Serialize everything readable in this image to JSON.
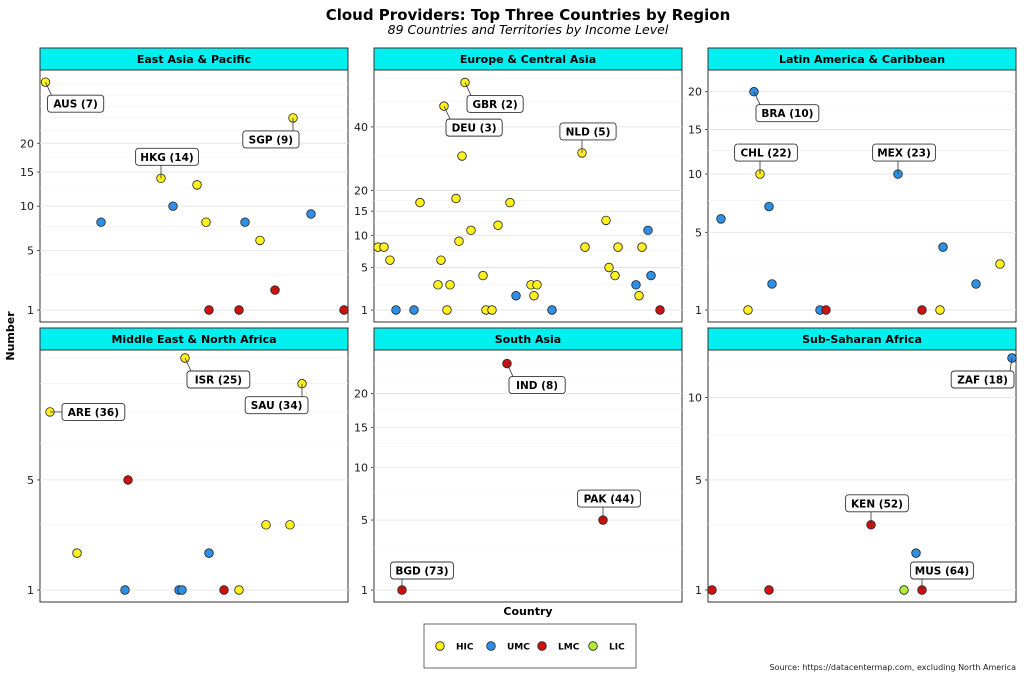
{
  "chart_data": {
    "type": "scatter",
    "title": "Cloud Providers: Top Three Countries by Region",
    "subtitle": "89 Countries and Territories by Income Level",
    "xlabel": "Country",
    "ylabel": "Number",
    "caption": "Source: https://datacentermap.com, excluding North America",
    "y_scale": "sqrt",
    "grid": true,
    "legend_position": "bottom",
    "categories": {
      "HIC": {
        "label": "HIC",
        "color": "#FFF01F"
      },
      "UMC": {
        "label": "UMC",
        "color": "#2E8FE6"
      },
      "LMC": {
        "label": "LMC",
        "color": "#CC1111"
      },
      "LIC": {
        "label": "LIC",
        "color": "#B3EB3B"
      }
    },
    "legend": [
      "HIC",
      "UMC",
      "LMC",
      "LIC"
    ],
    "panels": [
      {
        "name": "East Asia & Pacific",
        "ymax": 34,
        "yticks": [
          1,
          5,
          10,
          15,
          20
        ],
        "points": [
          {
            "x": 0.5,
            "y": 33,
            "cat": "HIC",
            "label": "AUS (7)"
          },
          {
            "x": 19,
            "y": 8,
            "cat": "UMC"
          },
          {
            "x": 39,
            "y": 14,
            "cat": "HIC",
            "label": "HKG (14)"
          },
          {
            "x": 43,
            "y": 10,
            "cat": "UMC"
          },
          {
            "x": 51,
            "y": 13,
            "cat": "HIC"
          },
          {
            "x": 54,
            "y": 8,
            "cat": "HIC"
          },
          {
            "x": 55,
            "y": 1,
            "cat": "LMC"
          },
          {
            "x": 65,
            "y": 1,
            "cat": "LMC"
          },
          {
            "x": 67,
            "y": 8,
            "cat": "UMC"
          },
          {
            "x": 72,
            "y": 6,
            "cat": "HIC"
          },
          {
            "x": 77,
            "y": 2,
            "cat": "LMC"
          },
          {
            "x": 83,
            "y": 25,
            "cat": "HIC",
            "label": "SGP (9)"
          },
          {
            "x": 89,
            "y": 9,
            "cat": "UMC"
          },
          {
            "x": 100,
            "y": 1,
            "cat": "LMC"
          }
        ]
      },
      {
        "name": "Europe & Central Asia",
        "ymax": 60,
        "yticks": [
          1,
          5,
          10,
          15,
          20,
          40
        ],
        "points": [
          {
            "x": 0,
            "y": 8,
            "cat": "HIC"
          },
          {
            "x": 2,
            "y": 8,
            "cat": "HIC"
          },
          {
            "x": 4,
            "y": 6,
            "cat": "HIC"
          },
          {
            "x": 6,
            "y": 1,
            "cat": "UMC"
          },
          {
            "x": 12,
            "y": 1,
            "cat": "UMC"
          },
          {
            "x": 14,
            "y": 17,
            "cat": "HIC"
          },
          {
            "x": 20,
            "y": 3,
            "cat": "HIC"
          },
          {
            "x": 21,
            "y": 6,
            "cat": "HIC"
          },
          {
            "x": 22,
            "y": 48,
            "cat": "HIC",
            "label": "DEU (3)"
          },
          {
            "x": 23,
            "y": 1,
            "cat": "HIC"
          },
          {
            "x": 24,
            "y": 3,
            "cat": "HIC"
          },
          {
            "x": 26,
            "y": 18,
            "cat": "HIC"
          },
          {
            "x": 27,
            "y": 9,
            "cat": "HIC"
          },
          {
            "x": 28,
            "y": 30,
            "cat": "HIC"
          },
          {
            "x": 29,
            "y": 58,
            "cat": "HIC",
            "label": "GBR (2)"
          },
          {
            "x": 31,
            "y": 11,
            "cat": "HIC"
          },
          {
            "x": 35,
            "y": 4,
            "cat": "HIC"
          },
          {
            "x": 36,
            "y": 1,
            "cat": "HIC"
          },
          {
            "x": 38,
            "y": 1,
            "cat": "HIC"
          },
          {
            "x": 40,
            "y": 12,
            "cat": "HIC"
          },
          {
            "x": 44,
            "y": 17,
            "cat": "HIC"
          },
          {
            "x": 46,
            "y": 2,
            "cat": "UMC"
          },
          {
            "x": 51,
            "y": 3,
            "cat": "HIC"
          },
          {
            "x": 52,
            "y": 2,
            "cat": "HIC"
          },
          {
            "x": 53,
            "y": 3,
            "cat": "HIC"
          },
          {
            "x": 58,
            "y": 1,
            "cat": "UMC"
          },
          {
            "x": 68,
            "y": 31,
            "cat": "HIC",
            "label": "NLD (5)"
          },
          {
            "x": 69,
            "y": 8,
            "cat": "HIC"
          },
          {
            "x": 76,
            "y": 13,
            "cat": "HIC"
          },
          {
            "x": 77,
            "y": 5,
            "cat": "HIC"
          },
          {
            "x": 79,
            "y": 4,
            "cat": "HIC"
          },
          {
            "x": 80,
            "y": 8,
            "cat": "HIC"
          },
          {
            "x": 86,
            "y": 3,
            "cat": "UMC"
          },
          {
            "x": 87,
            "y": 2,
            "cat": "HIC"
          },
          {
            "x": 88,
            "y": 8,
            "cat": "HIC"
          },
          {
            "x": 90,
            "y": 11,
            "cat": "UMC"
          },
          {
            "x": 91,
            "y": 4,
            "cat": "UMC"
          },
          {
            "x": 94,
            "y": 1,
            "cat": "LMC"
          }
        ]
      },
      {
        "name": "Latin America & Caribbean",
        "ymax": 22,
        "yticks": [
          1,
          5,
          10,
          15,
          20
        ],
        "points": [
          {
            "x": 3,
            "y": 6,
            "cat": "UMC"
          },
          {
            "x": 12,
            "y": 1,
            "cat": "HIC"
          },
          {
            "x": 16,
            "y": 10,
            "cat": "HIC",
            "label": "CHL (22)"
          },
          {
            "x": 14,
            "y": 20,
            "cat": "UMC",
            "label": "BRA (10)"
          },
          {
            "x": 19,
            "y": 7,
            "cat": "UMC"
          },
          {
            "x": 20,
            "y": 2,
            "cat": "UMC"
          },
          {
            "x": 36,
            "y": 1,
            "cat": "UMC"
          },
          {
            "x": 38,
            "y": 1,
            "cat": "LMC"
          },
          {
            "x": 62,
            "y": 10,
            "cat": "UMC",
            "label": "MEX (23)"
          },
          {
            "x": 70,
            "y": 1,
            "cat": "LMC"
          },
          {
            "x": 76,
            "y": 1,
            "cat": "HIC"
          },
          {
            "x": 77,
            "y": 4,
            "cat": "UMC"
          },
          {
            "x": 88,
            "y": 2,
            "cat": "UMC"
          },
          {
            "x": 96,
            "y": 3,
            "cat": "HIC"
          }
        ]
      },
      {
        "name": "Middle East & North Africa",
        "ymax": 13,
        "yticks": [
          1,
          5
        ],
        "points": [
          {
            "x": 2,
            "y": 9,
            "cat": "HIC",
            "label": "ARE (36)"
          },
          {
            "x": 11,
            "y": 2,
            "cat": "HIC"
          },
          {
            "x": 27,
            "y": 1,
            "cat": "UMC"
          },
          {
            "x": 28,
            "y": 5,
            "cat": "LMC"
          },
          {
            "x": 45,
            "y": 1,
            "cat": "UMC"
          },
          {
            "x": 46,
            "y": 1,
            "cat": "UMC"
          },
          {
            "x": 47,
            "y": 13,
            "cat": "HIC",
            "label": "ISR (25)"
          },
          {
            "x": 55,
            "y": 2,
            "cat": "UMC"
          },
          {
            "x": 60,
            "y": 1,
            "cat": "LMC"
          },
          {
            "x": 65,
            "y": 1,
            "cat": "HIC"
          },
          {
            "x": 74,
            "y": 3,
            "cat": "HIC"
          },
          {
            "x": 82,
            "y": 3,
            "cat": "HIC"
          },
          {
            "x": 86,
            "y": 11,
            "cat": "HIC",
            "label": "SAU (34)"
          }
        ]
      },
      {
        "name": "South Asia",
        "ymax": 26,
        "yticks": [
          1,
          5,
          10,
          15,
          20
        ],
        "points": [
          {
            "x": 8,
            "y": 1,
            "cat": "LMC",
            "label": "BGD (73)"
          },
          {
            "x": 43,
            "y": 25,
            "cat": "LMC",
            "label": "IND (8)"
          },
          {
            "x": 75,
            "y": 5,
            "cat": "LMC",
            "label": "PAK (44)"
          }
        ]
      },
      {
        "name": "Sub-Saharan Africa",
        "ymax": 13,
        "yticks": [
          1,
          5,
          10
        ],
        "points": [
          {
            "x": 0,
            "y": 1,
            "cat": "LMC"
          },
          {
            "x": 19,
            "y": 1,
            "cat": "LMC"
          },
          {
            "x": 53,
            "y": 3,
            "cat": "LMC",
            "label": "KEN (52)"
          },
          {
            "x": 64,
            "y": 1,
            "cat": "LIC"
          },
          {
            "x": 68,
            "y": 2,
            "cat": "UMC"
          },
          {
            "x": 70,
            "y": 1,
            "cat": "LMC",
            "label": "MUS (64)"
          },
          {
            "x": 100,
            "y": 13,
            "cat": "UMC",
            "label": "ZAF (18)"
          }
        ]
      }
    ]
  }
}
